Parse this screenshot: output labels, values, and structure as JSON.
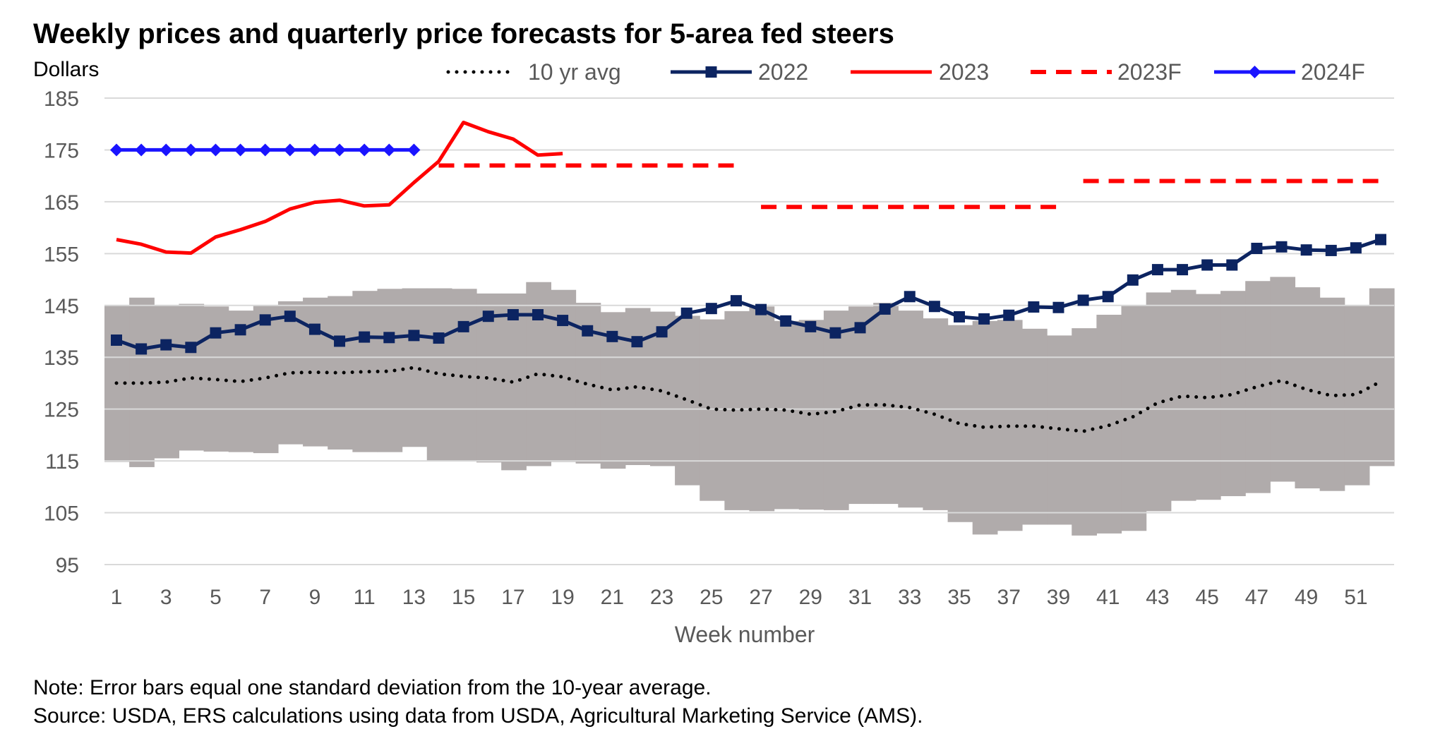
{
  "title": "Weekly prices and quarterly price forecasts for 5-area fed steers",
  "notes": [
    "Note: Error bars equal one standard deviation from the 10-year average.",
    "Source: USDA, ERS calculations using data from USDA, Agricultural Marketing Service (AMS)."
  ],
  "chart_data": {
    "type": "line",
    "title": "Weekly prices and quarterly price forecasts for 5-area fed steers",
    "ylabel": "Dollars",
    "xlabel": "Week number",
    "ylim": [
      95,
      185
    ],
    "yticks": [
      95,
      105,
      115,
      125,
      135,
      145,
      155,
      165,
      175,
      185
    ],
    "xlim": [
      1,
      52
    ],
    "xticks": [
      1,
      3,
      5,
      7,
      9,
      11,
      13,
      15,
      17,
      19,
      21,
      23,
      25,
      27,
      29,
      31,
      33,
      35,
      37,
      39,
      41,
      43,
      45,
      47,
      49,
      51
    ],
    "grid": true,
    "legend_position": "top",
    "band": {
      "description_source": "Error bars equal one standard deviation from the 10-year average",
      "color": "#b0abab",
      "upper": [
        145.0,
        146.5,
        145.0,
        145.3,
        144.8,
        144.0,
        145.0,
        145.8,
        146.5,
        146.8,
        147.8,
        148.2,
        148.3,
        148.3,
        148.2,
        147.3,
        147.3,
        149.5,
        148.0,
        145.5,
        143.7,
        144.5,
        143.8,
        143.0,
        142.3,
        143.9,
        144.8,
        142.0,
        142.2,
        144.0,
        144.8,
        145.5,
        144.0,
        142.5,
        141.2,
        142.0,
        142.2,
        140.5,
        139.2,
        140.6,
        143.2,
        145.0,
        147.5,
        148.0,
        147.2,
        147.8,
        149.7,
        150.5,
        148.5,
        146.5,
        145.0,
        148.3
      ],
      "lower": [
        114.8,
        113.8,
        115.5,
        117.0,
        116.8,
        116.7,
        116.5,
        118.2,
        117.8,
        117.2,
        116.7,
        116.7,
        117.7,
        115.0,
        115.0,
        114.7,
        113.2,
        114.0,
        114.8,
        114.5,
        113.5,
        114.2,
        114.0,
        110.3,
        107.3,
        105.5,
        105.3,
        105.7,
        105.6,
        105.5,
        106.7,
        106.7,
        106.0,
        105.5,
        103.2,
        100.8,
        101.5,
        102.7,
        102.7,
        100.6,
        101.0,
        101.5,
        105.3,
        107.3,
        107.5,
        108.2,
        108.8,
        111.0,
        109.7,
        109.2,
        110.3,
        114.0
      ]
    },
    "series": [
      {
        "name": "10 yr avg",
        "color": "#000000",
        "style": "dotted",
        "x": [
          1,
          2,
          3,
          4,
          5,
          6,
          7,
          8,
          9,
          10,
          11,
          12,
          13,
          14,
          15,
          16,
          17,
          18,
          19,
          20,
          21,
          22,
          23,
          24,
          25,
          26,
          27,
          28,
          29,
          30,
          31,
          32,
          33,
          34,
          35,
          36,
          37,
          38,
          39,
          40,
          41,
          42,
          43,
          44,
          45,
          46,
          47,
          48,
          49,
          50,
          51,
          52
        ],
        "values": [
          130.0,
          130.0,
          130.2,
          131.0,
          130.7,
          130.3,
          131.0,
          132.0,
          132.1,
          132.0,
          132.2,
          132.3,
          133.0,
          131.8,
          131.3,
          131.0,
          130.2,
          131.8,
          131.2,
          129.8,
          128.7,
          129.3,
          128.5,
          126.8,
          125.0,
          124.8,
          125.0,
          124.8,
          124.0,
          124.5,
          125.8,
          125.8,
          125.3,
          124.0,
          122.2,
          121.5,
          121.7,
          121.7,
          121.2,
          120.7,
          121.8,
          123.5,
          126.2,
          127.5,
          127.2,
          127.8,
          129.3,
          130.5,
          128.8,
          127.6,
          127.8,
          130.3
        ]
      },
      {
        "name": "2022",
        "color": "#0c2461",
        "style": "solid-square",
        "x": [
          1,
          2,
          3,
          4,
          5,
          6,
          7,
          8,
          9,
          10,
          11,
          12,
          13,
          14,
          15,
          16,
          17,
          18,
          19,
          20,
          21,
          22,
          23,
          24,
          25,
          26,
          27,
          28,
          29,
          30,
          31,
          32,
          33,
          34,
          35,
          36,
          37,
          38,
          39,
          40,
          41,
          42,
          43,
          44,
          45,
          46,
          47,
          48,
          49,
          50,
          51,
          52
        ],
        "values": [
          138.3,
          136.6,
          137.4,
          136.9,
          139.7,
          140.3,
          142.2,
          142.9,
          140.4,
          138.1,
          138.9,
          138.8,
          139.2,
          138.7,
          140.9,
          142.9,
          143.2,
          143.2,
          142.1,
          140.1,
          139.0,
          138.0,
          139.9,
          143.5,
          144.4,
          145.9,
          144.2,
          142.0,
          140.9,
          139.7,
          140.7,
          144.3,
          146.7,
          144.8,
          142.8,
          142.4,
          143.1,
          144.7,
          144.6,
          146.0,
          146.7,
          149.9,
          151.9,
          151.9,
          152.8,
          152.8,
          156.0,
          156.3,
          155.7,
          155.6,
          156.1,
          157.7
        ]
      },
      {
        "name": "2023",
        "color": "#ff0000",
        "style": "solid",
        "x": [
          1,
          2,
          3,
          4,
          5,
          6,
          7,
          8,
          9,
          10,
          11,
          12,
          13,
          14,
          15,
          16,
          17,
          18,
          19
        ],
        "values": [
          157.7,
          156.8,
          155.3,
          155.1,
          158.2,
          159.6,
          161.2,
          163.6,
          164.9,
          165.3,
          164.2,
          164.4,
          168.7,
          172.8,
          180.3,
          178.5,
          177.1,
          174.0,
          174.3
        ]
      },
      {
        "name": "2023F",
        "color": "#ff0000",
        "style": "dashed",
        "segments": [
          {
            "x": [
              14,
              26
            ],
            "value": 172
          },
          {
            "x": [
              27,
              39
            ],
            "value": 164
          },
          {
            "x": [
              40,
              52
            ],
            "value": 169
          }
        ]
      },
      {
        "name": "2024F",
        "color": "#1a14ff",
        "style": "solid-diamond",
        "x": [
          1,
          2,
          3,
          4,
          5,
          6,
          7,
          8,
          9,
          10,
          11,
          12,
          13
        ],
        "values": [
          175,
          175,
          175,
          175,
          175,
          175,
          175,
          175,
          175,
          175,
          175,
          175,
          175
        ]
      }
    ]
  }
}
